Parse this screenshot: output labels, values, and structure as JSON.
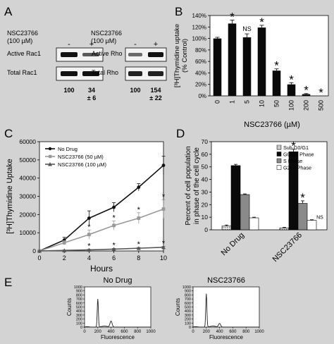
{
  "panels": {
    "A": "A",
    "B": "B",
    "C": "C",
    "D": "D",
    "E": "E"
  },
  "blots": {
    "left": {
      "treatment_line1": "NSC23766",
      "treatment_line2": "(100 µM)",
      "minus": "-",
      "plus": "+",
      "rows": [
        "Active Rac1",
        "Total Rac1"
      ],
      "quant": [
        "100",
        "34",
        "± 6"
      ]
    },
    "right": {
      "treatment_line1": "NSC23766",
      "treatment_line2": "(100 µM)",
      "minus": "-",
      "plus": "+",
      "rows": [
        "Active Rho",
        "Total Rho"
      ],
      "quant": [
        "100",
        "154",
        "± 22"
      ]
    }
  },
  "chart_data": [
    {
      "panel": "B",
      "type": "bar",
      "categories": [
        "0",
        "1",
        "5",
        "10",
        "50",
        "100",
        "200",
        "500"
      ],
      "values": [
        100,
        126,
        102,
        119,
        44,
        20,
        3,
        0
      ],
      "errors": [
        2,
        6,
        6,
        4,
        3,
        3,
        1,
        0
      ],
      "annotations": [
        "",
        "*",
        "NS",
        "*",
        "*",
        "*",
        "*",
        "*"
      ],
      "xlabel": "NSC23766 (µM)",
      "ylabel_line1": "[³H]Thymidine uptake",
      "ylabel_line2": "(% Control)",
      "ylim": [
        0,
        140
      ],
      "yticks": [
        0,
        20,
        40,
        60,
        80,
        100,
        120,
        140
      ],
      "ytick_labels": [
        "0%",
        "20%",
        "40%",
        "60%",
        "80%",
        "100%",
        "120%",
        "140%"
      ],
      "grid": false
    },
    {
      "panel": "C",
      "type": "line",
      "x": [
        0,
        2,
        4,
        6,
        8,
        10
      ],
      "series": [
        {
          "name": "No Drug",
          "values": [
            0,
            6000,
            18000,
            24000,
            35000,
            47000
          ],
          "errors": [
            0,
            1500,
            4000,
            2500,
            2000,
            5000
          ],
          "color": "#111111",
          "marker": "circle"
        },
        {
          "name": "NSC23766 (50 µM)",
          "values": [
            0,
            4500,
            9000,
            14000,
            18000,
            23000
          ],
          "errors": [
            0,
            1200,
            2500,
            2500,
            3000,
            5000
          ],
          "color": "#999999",
          "marker": "square"
        },
        {
          "name": "NSC23766 (100 µM)",
          "values": [
            0,
            300,
            600,
            1000,
            1500,
            2000
          ],
          "errors": [
            0,
            200,
            300,
            400,
            400,
            500
          ],
          "color": "#555555",
          "marker": "triangle"
        }
      ],
      "star_labels": {
        "50": [
          4,
          6,
          8,
          10
        ],
        "100": [
          4,
          6,
          8,
          10
        ]
      },
      "star_symbol": "*",
      "xlabel": "Hours",
      "ylabel": "[³H]Thymidine Uptake",
      "xlim": [
        0,
        10
      ],
      "xticks": [
        "0",
        "2",
        "4",
        "6",
        "8",
        "10"
      ],
      "ylim": [
        0,
        60000
      ],
      "yticks": [
        "0",
        "10000",
        "20000",
        "30000",
        "40000",
        "50000",
        "60000"
      ],
      "legend": "top-left",
      "grid": false
    },
    {
      "panel": "D",
      "type": "bar",
      "categories": [
        "No Drug",
        "NSC23766"
      ],
      "series": [
        {
          "name": "Sub G0/G1",
          "values": [
            3,
            1.5
          ],
          "errors": [
            0.8,
            0.5
          ],
          "color": "#cfcfcf",
          "pattern": "dots"
        },
        {
          "name": "G0/G1 Phase",
          "values": [
            51,
            62
          ],
          "errors": [
            1,
            2
          ],
          "color": "#0a0a0a"
        },
        {
          "name": "S Phase",
          "values": [
            28,
            21
          ],
          "errors": [
            0.5,
            2
          ],
          "color": "#8a8a8a"
        },
        {
          "name": "G2/M Phase",
          "values": [
            9.5,
            7.5
          ],
          "errors": [
            0.5,
            0.5
          ],
          "color": "#ffffff"
        }
      ],
      "annotations": {
        "NSC23766": [
          "NS",
          "*",
          "*",
          "NS"
        ]
      },
      "ylabel_line1": "Percent of cell population",
      "ylabel_line2": "in phase of the cell cycle",
      "ylim": [
        0,
        70
      ],
      "yticks": [
        0,
        10,
        20,
        30,
        40,
        50,
        60,
        70
      ],
      "ytick_labels": [
        "0",
        "10",
        "20",
        "30",
        "40",
        "50",
        "60",
        "70"
      ],
      "legend": "top-right",
      "grid": false
    }
  ],
  "histograms": [
    {
      "title": "No Drug",
      "ylabel": "Counts",
      "xlabel": "Fluorescence",
      "yticks": [
        "0",
        "100",
        "200",
        "300",
        "400",
        "500",
        "600",
        "700",
        "800",
        "900",
        "1000"
      ],
      "xticks": [
        "0",
        "200",
        "400",
        "600",
        "800",
        "1000"
      ],
      "xlim": [
        0,
        1000
      ],
      "ylim": [
        0,
        1000
      ],
      "g1_peak": {
        "x": 200,
        "y": 700
      },
      "g2_peak": {
        "x": 400,
        "y": 150
      }
    },
    {
      "title": "NSC23766",
      "ylabel": "Counts",
      "xlabel": "Fluorescence",
      "yticks": [
        "0",
        "100",
        "200",
        "300",
        "400",
        "500",
        "600",
        "700",
        "800",
        "900",
        "1000"
      ],
      "xticks": [
        "0",
        "200",
        "400",
        "600",
        "800",
        "1000"
      ],
      "xlim": [
        0,
        1000
      ],
      "ylim": [
        0,
        1000
      ],
      "g1_peak": {
        "x": 200,
        "y": 830
      },
      "g2_peak": {
        "x": 400,
        "y": 90
      }
    }
  ]
}
